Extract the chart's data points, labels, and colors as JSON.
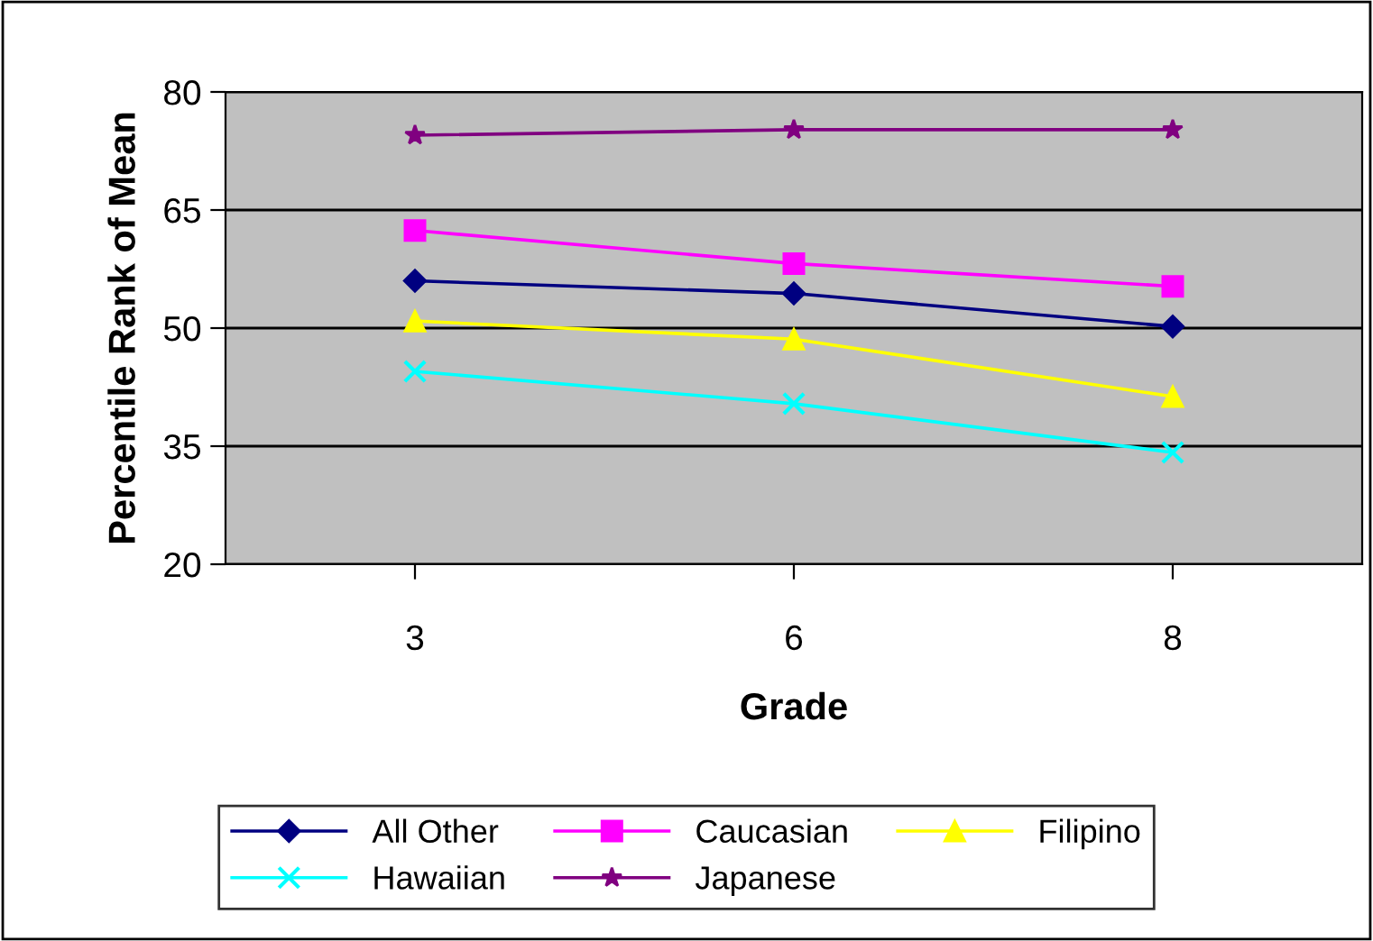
{
  "chart_data": {
    "type": "line",
    "xlabel": "Grade",
    "ylabel": "Percentile Rank of Mean",
    "categories": [
      "3",
      "6",
      "8"
    ],
    "series": [
      {
        "name": "All Other",
        "color": "#000080",
        "marker": "diamond",
        "values": [
          56,
          54.4,
          50.2
        ]
      },
      {
        "name": "Caucasian",
        "color": "#ff00ff",
        "marker": "square",
        "values": [
          62.4,
          58.2,
          55.3
        ]
      },
      {
        "name": "Filipino",
        "color": "#ffff00",
        "marker": "triangle",
        "values": [
          50.9,
          48.6,
          41.3
        ]
      },
      {
        "name": "Hawaiian",
        "color": "#00ffff",
        "marker": "cross",
        "values": [
          44.5,
          40.4,
          34.2
        ]
      },
      {
        "name": "Japanese",
        "color": "#800080",
        "marker": "star",
        "values": [
          74.5,
          75.2,
          75.2
        ]
      }
    ],
    "ylim": [
      20,
      80
    ],
    "yticks": [
      20,
      35,
      50,
      65,
      80
    ],
    "grid": "y",
    "legend": "bottom"
  }
}
